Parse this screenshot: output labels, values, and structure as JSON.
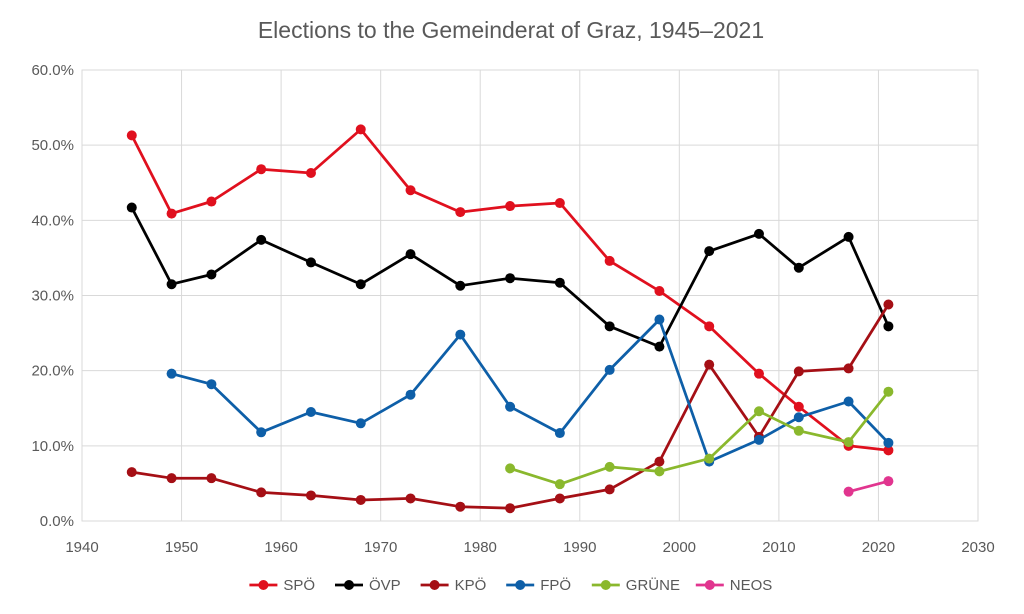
{
  "chart_data": {
    "type": "line",
    "title": "Elections to the Gemeinderat of Graz, 1945–2021",
    "xlabel": "",
    "ylabel": "",
    "xlim": [
      1940,
      2030
    ],
    "ylim": [
      0,
      60
    ],
    "x_ticks": [
      1940,
      1950,
      1960,
      1970,
      1980,
      1990,
      2000,
      2010,
      2020,
      2030
    ],
    "x_tick_labels": [
      "1940",
      "1950",
      "1960",
      "1970",
      "1980",
      "1990",
      "2000",
      "2010",
      "2020",
      "2030"
    ],
    "y_ticks": [
      0,
      10,
      20,
      30,
      40,
      50,
      60
    ],
    "y_tick_labels": [
      "0.0%",
      "10.0%",
      "20.0%",
      "30.0%",
      "40.0%",
      "50.0%",
      "60.0%"
    ],
    "grid": true,
    "legend_position": "bottom",
    "series": [
      {
        "name": "SPÖ",
        "color": "#e0101e",
        "x": [
          1945,
          1949,
          1953,
          1958,
          1963,
          1968,
          1973,
          1978,
          1983,
          1988,
          1993,
          1998,
          2003,
          2008,
          2012,
          2017,
          2021
        ],
        "y": [
          51.3,
          40.9,
          42.5,
          46.8,
          46.3,
          52.1,
          44.0,
          41.1,
          41.9,
          42.3,
          34.6,
          30.6,
          25.9,
          19.6,
          15.2,
          10.0,
          9.4
        ]
      },
      {
        "name": "ÖVP",
        "color": "#000000",
        "x": [
          1945,
          1949,
          1953,
          1958,
          1963,
          1968,
          1973,
          1978,
          1983,
          1988,
          1993,
          1998,
          2003,
          2008,
          2012,
          2017,
          2021
        ],
        "y": [
          41.7,
          31.5,
          32.8,
          37.4,
          34.4,
          31.5,
          35.5,
          31.3,
          32.3,
          31.7,
          25.9,
          23.2,
          35.9,
          38.2,
          33.7,
          37.8,
          25.9
        ]
      },
      {
        "name": "KPÖ",
        "color": "#a50f15",
        "x": [
          1945,
          1949,
          1953,
          1958,
          1963,
          1968,
          1973,
          1978,
          1983,
          1988,
          1993,
          1998,
          2003,
          2008,
          2012,
          2017,
          2021
        ],
        "y": [
          6.5,
          5.7,
          5.7,
          3.8,
          3.4,
          2.8,
          3.0,
          1.9,
          1.7,
          3.0,
          4.2,
          7.9,
          20.8,
          11.2,
          19.9,
          20.3,
          28.8
        ]
      },
      {
        "name": "FPÖ",
        "color": "#0e5fa8",
        "x": [
          1949,
          1953,
          1958,
          1963,
          1968,
          1973,
          1978,
          1983,
          1988,
          1993,
          1998,
          2003,
          2008,
          2012,
          2017,
          2021
        ],
        "y": [
          19.6,
          18.2,
          11.8,
          14.5,
          13.0,
          16.8,
          24.8,
          15.2,
          11.7,
          20.1,
          26.8,
          7.9,
          10.8,
          13.8,
          15.9,
          10.4
        ]
      },
      {
        "name": "GRÜNE",
        "color": "#8ab82d",
        "x": [
          1983,
          1988,
          1993,
          1998,
          2003,
          2008,
          2012,
          2017,
          2021
        ],
        "y": [
          7.0,
          4.9,
          7.2,
          6.6,
          8.3,
          14.6,
          12.0,
          10.5,
          17.2
        ]
      },
      {
        "name": "NEOS",
        "color": "#e1358f",
        "x": [
          2017,
          2021
        ],
        "y": [
          3.9,
          5.3
        ]
      }
    ]
  }
}
